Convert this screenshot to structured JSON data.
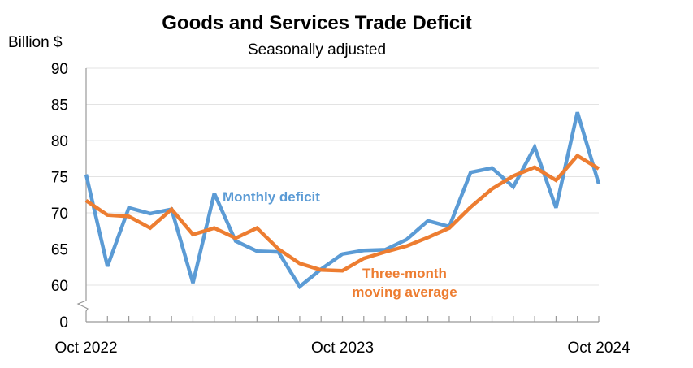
{
  "chart_data": {
    "type": "line",
    "title": "Goods and Services Trade Deficit",
    "subtitle": "Seasonally adjusted",
    "ylabel": "Billion $",
    "xlabel": "",
    "y_ticks": [
      0,
      60,
      65,
      70,
      75,
      80,
      85,
      90
    ],
    "y_tick_labels": [
      "0",
      "60",
      "65",
      "70",
      "75",
      "80",
      "85",
      "90"
    ],
    "ylim": [
      60,
      90
    ],
    "y_axis_break": true,
    "grid": true,
    "x_tick_labels": [
      "Oct 2022",
      "Oct 2023",
      "Oct 2024"
    ],
    "x_tick_label_indices": [
      0,
      12,
      24
    ],
    "x": [
      "Oct 2022",
      "Nov 2022",
      "Dec 2022",
      "Jan 2023",
      "Feb 2023",
      "Mar 2023",
      "Apr 2023",
      "May 2023",
      "Jun 2023",
      "Jul 2023",
      "Aug 2023",
      "Sep 2023",
      "Oct 2023",
      "Nov 2023",
      "Dec 2023",
      "Jan 2024",
      "Feb 2024",
      "Mar 2024",
      "Apr 2024",
      "May 2024",
      "Jun 2024",
      "Jul 2024",
      "Aug 2024",
      "Sep 2024",
      "Oct 2024"
    ],
    "series": [
      {
        "name": "Monthly deficit",
        "color": "#5B9BD5",
        "label": "Monthly deficit",
        "values": [
          75.3,
          62.6,
          70.7,
          69.9,
          70.5,
          60.3,
          72.7,
          66.1,
          64.7,
          64.6,
          59.8,
          62.2,
          64.3,
          64.8,
          64.9,
          66.3,
          68.9,
          68.1,
          75.6,
          76.2,
          73.6,
          79.1,
          70.7,
          83.9,
          74.0
        ]
      },
      {
        "name": "Three-month moving average",
        "color": "#ED7D31",
        "label_lines": [
          "Three-month",
          "moving average"
        ],
        "values": [
          71.7,
          69.7,
          69.5,
          67.9,
          70.5,
          67.0,
          67.9,
          66.5,
          67.9,
          65.0,
          63.0,
          62.1,
          62.0,
          63.7,
          64.6,
          65.4,
          66.6,
          67.9,
          70.8,
          73.3,
          75.1,
          76.3,
          74.5,
          77.9,
          76.1
        ]
      }
    ],
    "legend": "inline annotations"
  }
}
